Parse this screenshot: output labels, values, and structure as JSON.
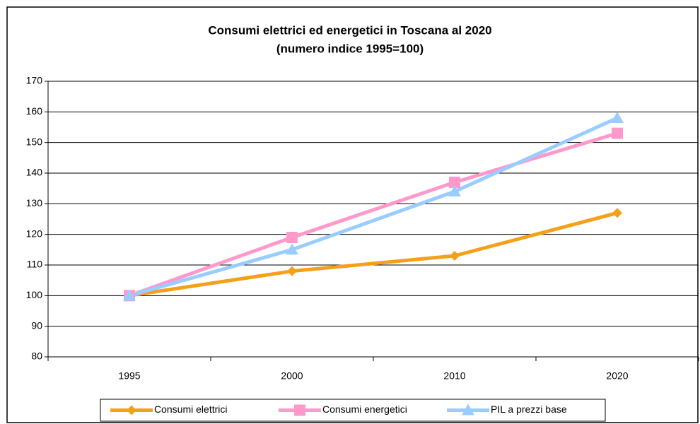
{
  "chart_data": {
    "type": "line",
    "title": "Consumi elettrici ed energetici in Toscana al 2020",
    "subtitle": "(numero indice 1995=100)",
    "categories": [
      "1995",
      "2000",
      "2010",
      "2020"
    ],
    "series": [
      {
        "name": "Consumi elettrici",
        "color": "#f5a01a",
        "marker": "diamond",
        "values": [
          100,
          108,
          113,
          127
        ]
      },
      {
        "name": "Consumi energetici",
        "color": "#ff99cc",
        "marker": "square",
        "values": [
          100,
          119,
          137,
          153
        ]
      },
      {
        "name": "PIL a prezzi base",
        "color": "#99ccff",
        "marker": "triangle",
        "values": [
          100,
          115,
          134,
          158
        ]
      }
    ],
    "ylim": [
      80,
      170
    ],
    "yticks": [
      80,
      90,
      100,
      110,
      120,
      130,
      140,
      150,
      160,
      170
    ],
    "grid": true,
    "legend": "bottom"
  }
}
